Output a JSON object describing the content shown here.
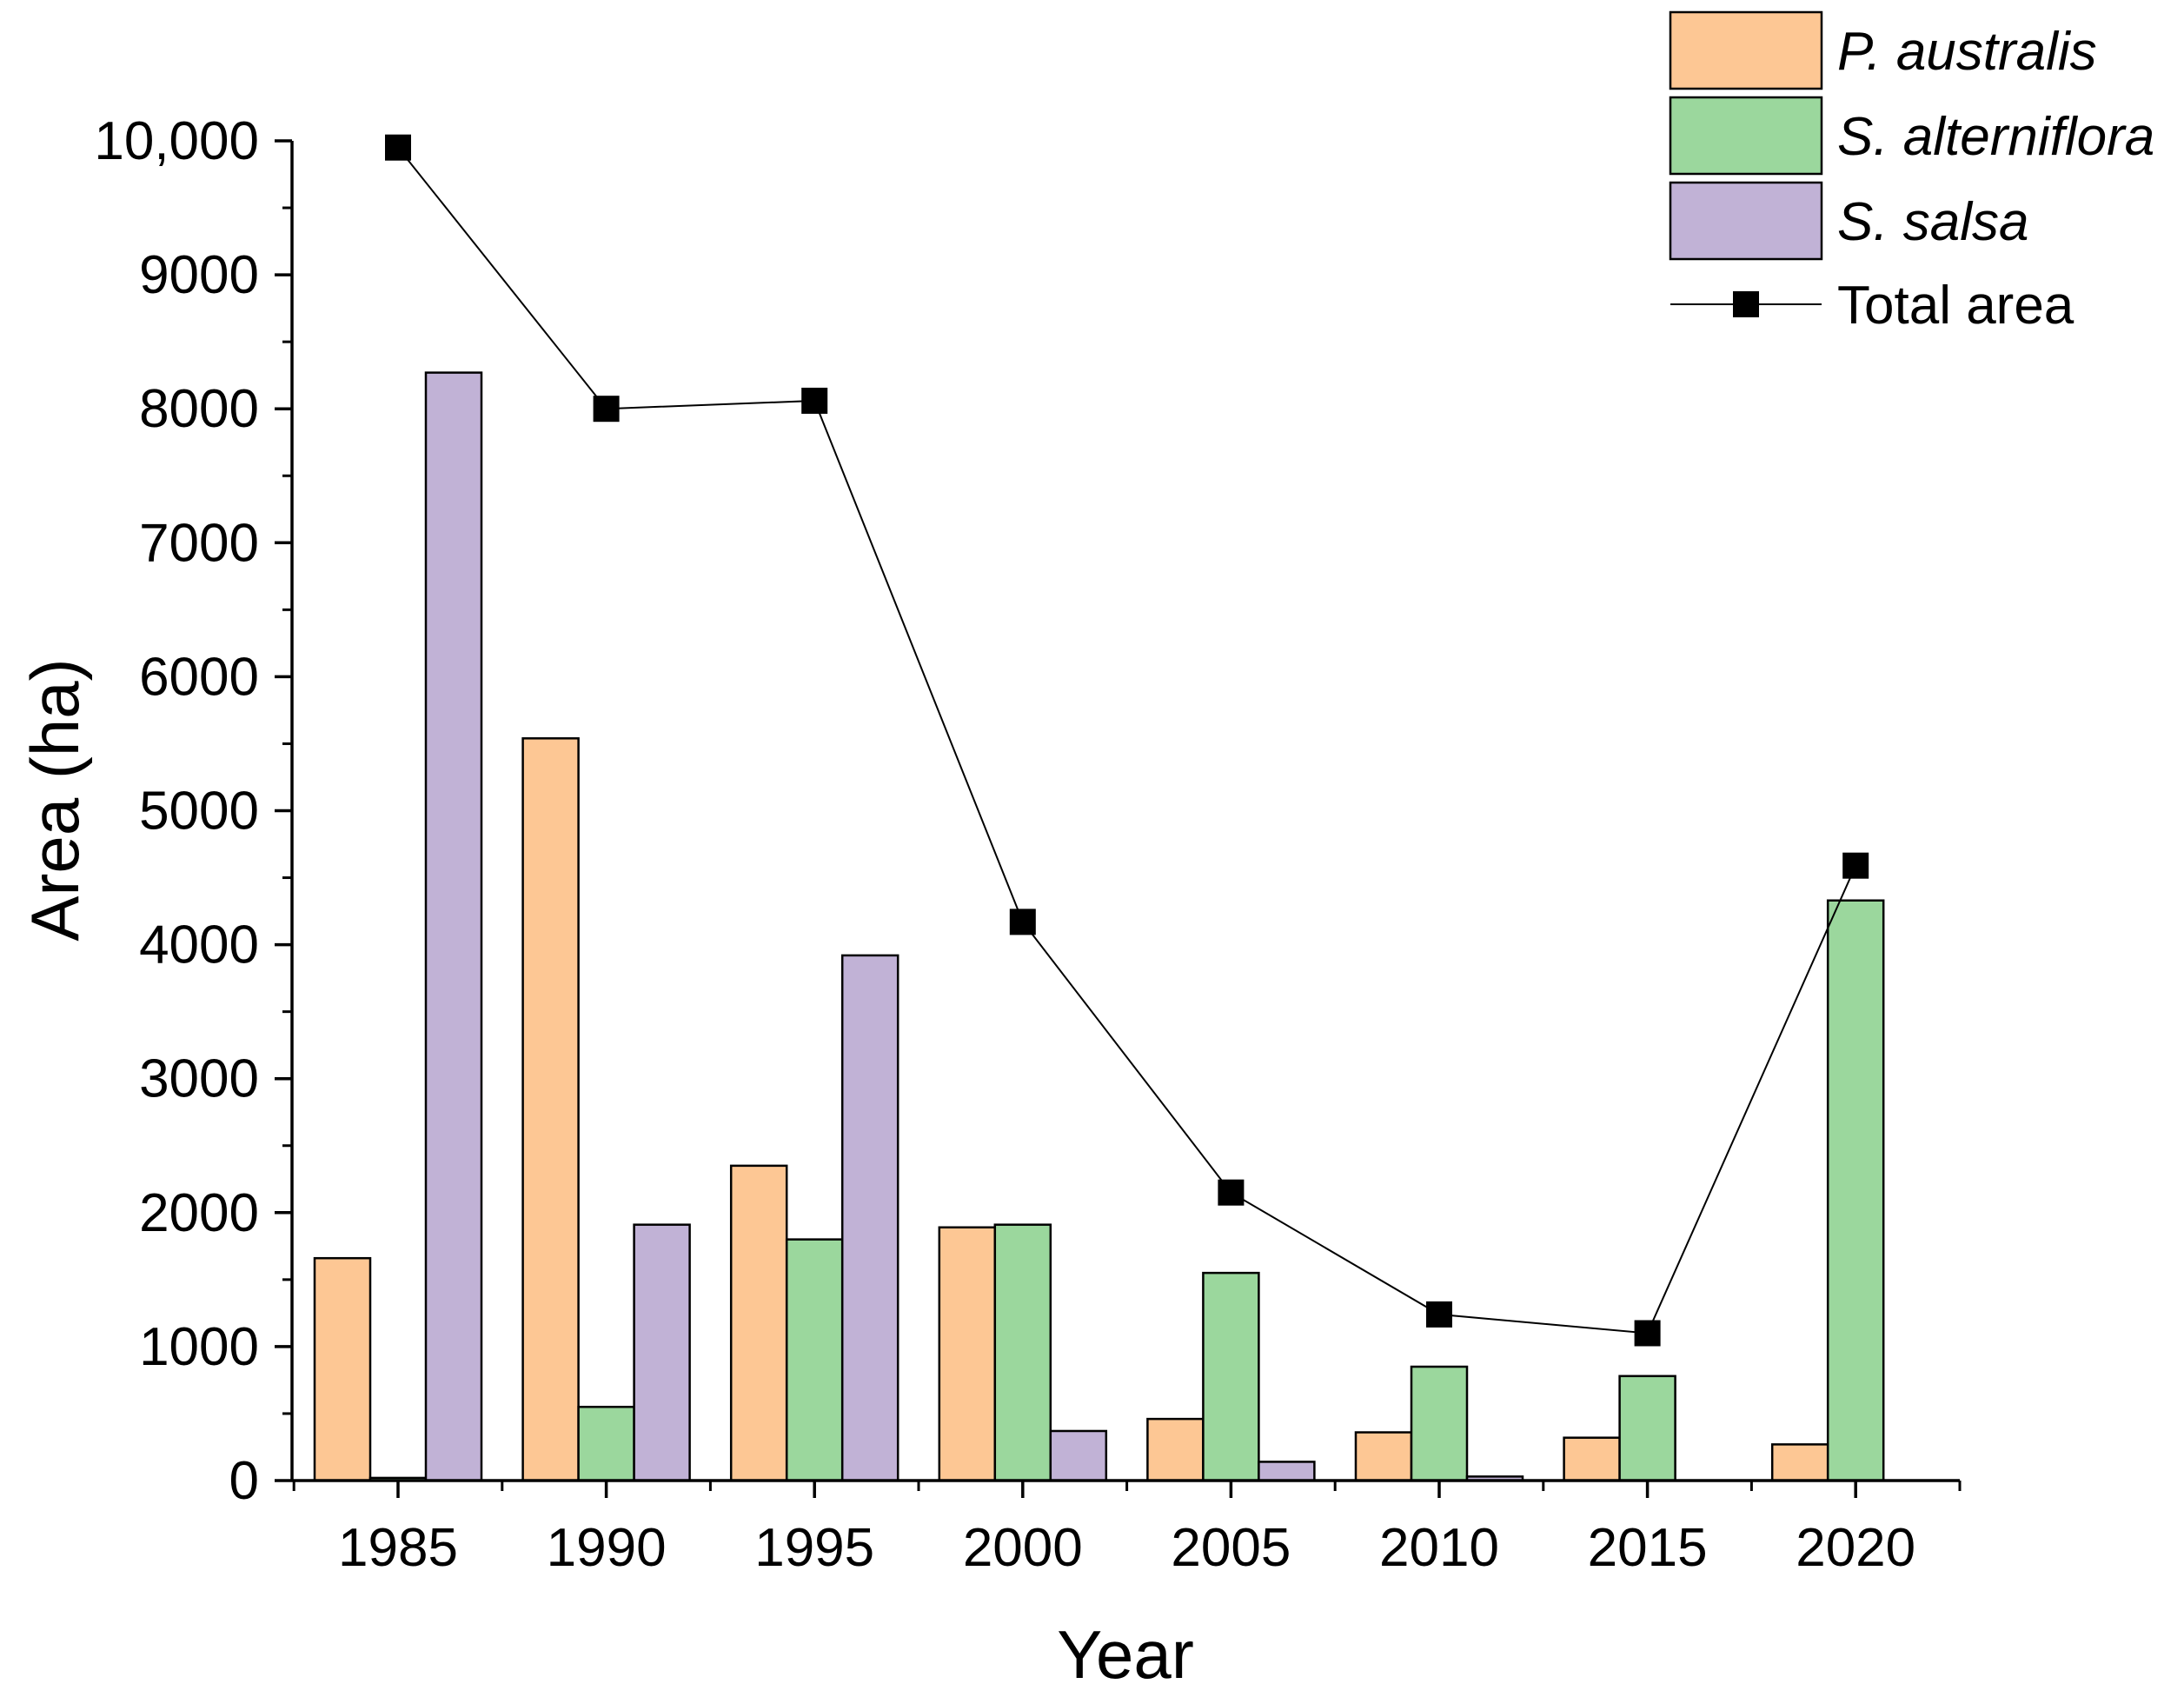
{
  "chart_data": {
    "type": "bar",
    "title": "",
    "xlabel": "Year",
    "ylabel": "Area (ha)",
    "ylim": [
      0,
      10000
    ],
    "yticks": [
      0,
      1000,
      2000,
      3000,
      4000,
      5000,
      6000,
      7000,
      8000,
      9000,
      10000
    ],
    "ytick_labels": [
      "0",
      "1000",
      "2000",
      "3000",
      "4000",
      "5000",
      "6000",
      "7000",
      "8000",
      "9000",
      "10,000"
    ],
    "categories": [
      "1985",
      "1990",
      "1995",
      "2000",
      "2005",
      "2010",
      "2015",
      "2020"
    ],
    "series": [
      {
        "name": "P. australis",
        "kind": "bar",
        "color": "#FDC794",
        "italic": true,
        "values": [
          1660,
          5540,
          2350,
          1890,
          460,
          360,
          320,
          270
        ]
      },
      {
        "name": "S. alterniflora",
        "kind": "bar",
        "color": "#9BD79D",
        "italic": true,
        "values": [
          20,
          550,
          1800,
          1910,
          1550,
          850,
          780,
          4330
        ]
      },
      {
        "name": "S. salsa",
        "kind": "bar",
        "color": "#C1B2D6",
        "italic": true,
        "values": [
          8270,
          1910,
          3920,
          370,
          140,
          30,
          0,
          0
        ]
      },
      {
        "name": "Total area",
        "kind": "line",
        "color": "#000000",
        "italic": false,
        "values": [
          9950,
          8000,
          8060,
          4170,
          2150,
          1240,
          1100,
          4590
        ]
      }
    ],
    "legend_position": "top-right",
    "grid": false
  }
}
